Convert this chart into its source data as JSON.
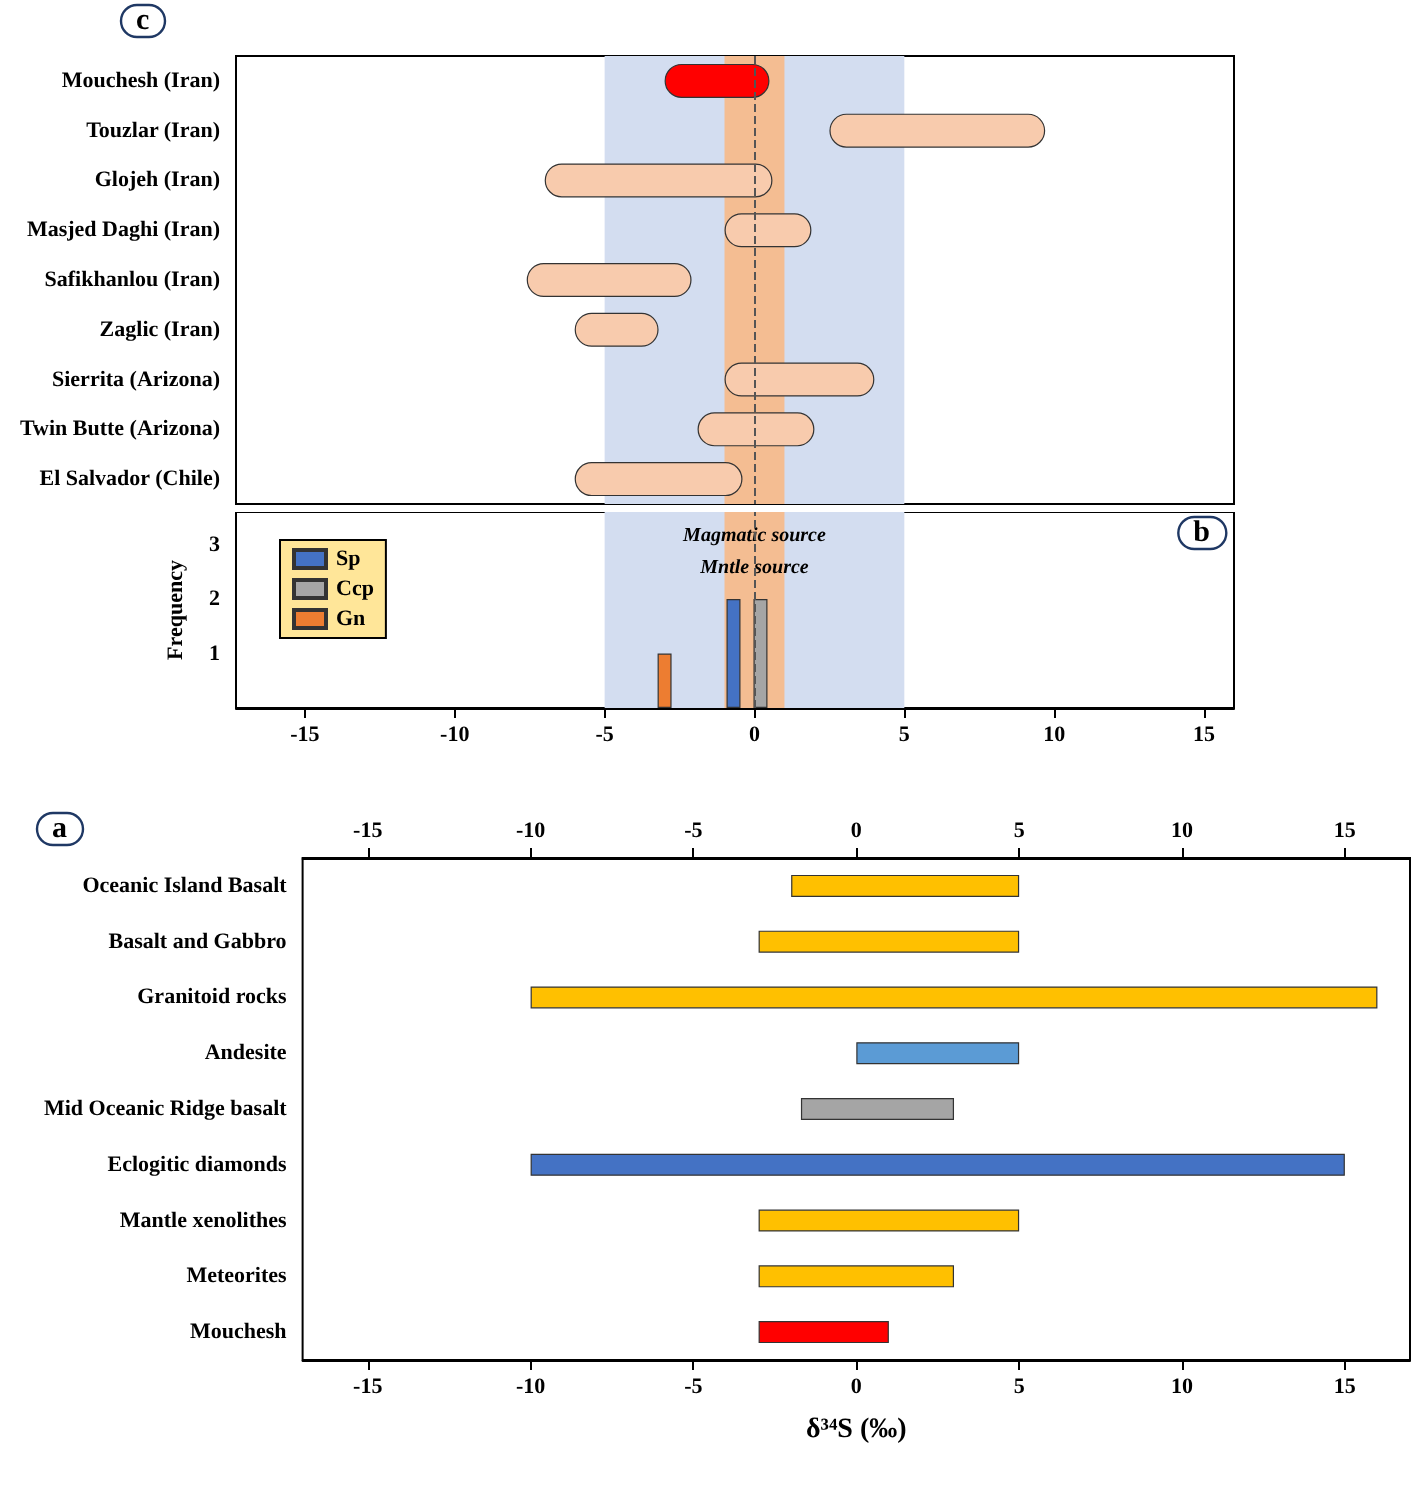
{
  "chart_data": [
    {
      "type": "bar",
      "title": "c",
      "orientation": "horizontal",
      "categories": [
        "Mouchesh (Iran)",
        "Touzlar (Iran)",
        "Glojeh (Iran)",
        "Masjed Daghi (Iran)",
        "Safikhanlou (Iran)",
        "Zaglic (Iran)",
        "Sierrita (Arizona)",
        "Twin Butte (Arizona)",
        "El Salvador (Chile)"
      ],
      "base": [
        -3,
        2.5,
        -7,
        -1,
        -7.6,
        -6,
        -1,
        -1.9,
        -6
      ],
      "values": [
        3.5,
        7.2,
        7.6,
        2.9,
        5.5,
        2.8,
        5,
        3.9,
        5.6
      ],
      "colors": [
        "#ff0000",
        "#f8cbad",
        "#f8cbad",
        "#f8cbad",
        "#f8cbad",
        "#f8cbad",
        "#f8cbad",
        "#f8cbad",
        "#f8cbad"
      ],
      "xlim": [
        -17.3,
        16
      ],
      "tick_labels": "y",
      "grid": false,
      "bands": [
        {
          "axis": "x",
          "from": -5,
          "to": 5,
          "color": "#d3ddf0"
        },
        {
          "axis": "x",
          "from": -1,
          "to": 1,
          "color": "#f4bd92"
        }
      ],
      "ref_lines": [
        {
          "axis": "x",
          "value": 0,
          "line_style": "dashed"
        }
      ]
    },
    {
      "type": "bar",
      "title": "b",
      "ylabel": "Frequency",
      "xlim": [
        -17.3,
        16
      ],
      "xticks": [
        -15,
        -10,
        -5,
        0,
        5,
        10,
        15
      ],
      "ylim": [
        0,
        3.6
      ],
      "yticks": [
        1,
        2,
        3
      ],
      "grid": false,
      "legend": "top left",
      "series": [
        {
          "name": "Sp",
          "color": "#4472c4",
          "x": [
            -0.7
          ],
          "values": [
            2
          ]
        },
        {
          "name": "Ccp",
          "color": "#a5a5a5",
          "x": [
            0.2
          ],
          "values": [
            2
          ]
        },
        {
          "name": "Gn",
          "color": "#ed7d31",
          "x": [
            -3
          ],
          "values": [
            1
          ]
        }
      ],
      "bands": [
        {
          "axis": "x",
          "from": -5,
          "to": 5,
          "color": "#d3ddf0",
          "label": "Magmatic source"
        },
        {
          "axis": "x",
          "from": -1,
          "to": 1,
          "color": "#f4bd92",
          "label": "Mntle source"
        }
      ],
      "ref_lines": [
        {
          "axis": "x",
          "value": 0,
          "line_style": "dashed"
        }
      ]
    },
    {
      "type": "bar",
      "title": "a",
      "orientation": "horizontal",
      "xlabel": "δ³⁴S (‰)",
      "categories": [
        "Oceanic Island Basalt",
        "Basalt and Gabbro",
        "Granitoid rocks",
        "Andesite",
        "Mid Oceanic Ridge basalt",
        "Eclogitic diamonds",
        "Mantle xenolithes",
        "Meteorites",
        "Mouchesh"
      ],
      "base": [
        -2,
        -3,
        -10,
        0,
        -1.7,
        -10,
        -3,
        -3,
        -3
      ],
      "values": [
        7,
        8,
        26,
        5,
        4.7,
        25,
        8,
        6,
        4
      ],
      "colors": [
        "#ffc000",
        "#ffc000",
        "#ffc000",
        "#5b9bd5",
        "#a5a5a5",
        "#4472c4",
        "#ffc000",
        "#ffc000",
        "#ff0000"
      ],
      "xlim": [
        -17,
        17
      ],
      "xticks": [
        -15,
        -10,
        -5,
        0,
        5,
        10,
        15
      ],
      "x2lim": [
        -17,
        17
      ],
      "x2ticks": [
        -15,
        -10,
        -5,
        0,
        5,
        10,
        15
      ],
      "grid": false
    }
  ]
}
